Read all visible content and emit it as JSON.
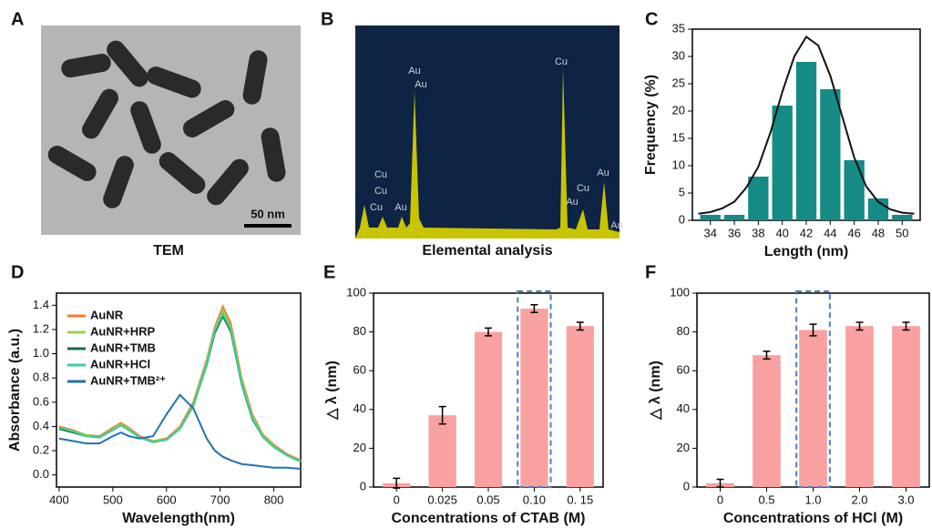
{
  "figure": {
    "tem_label": "A",
    "tem_caption": "TEM",
    "scale_bar": "50 nm",
    "eds_label": "B",
    "eds_caption": "Elemental analysis",
    "eds_peaks": [
      "Cu",
      "Cu",
      "Cu",
      "Au",
      "Au",
      "Au",
      "Cu",
      "Au",
      "Cu",
      "Au",
      "Au"
    ]
  },
  "chart_data": [
    {
      "type": "histogram",
      "panel_label": "C",
      "x_label": "Length (nm)",
      "y_label": "Frequency (%)",
      "color": "#168a85",
      "bins": [
        33,
        35,
        37,
        39,
        41,
        43,
        45,
        47,
        49,
        51
      ],
      "values": [
        1,
        1,
        8,
        21,
        29,
        24,
        11,
        4,
        1
      ],
      "xlim": [
        32.5,
        51.5
      ],
      "xticks": [
        34,
        36,
        38,
        40,
        42,
        44,
        46,
        48,
        50
      ],
      "ylim": [
        0,
        35
      ],
      "yticks": [
        0,
        5,
        10,
        15,
        20,
        25,
        30,
        35
      ],
      "fit_curve": {
        "color": "#111111",
        "x": [
          33,
          34,
          35,
          36,
          37,
          38,
          39,
          40,
          41,
          42,
          43,
          44,
          45,
          46,
          47,
          48,
          49,
          50,
          51
        ],
        "values": [
          1.2,
          1.5,
          2.2,
          3.4,
          6,
          9.8,
          16,
          23.5,
          30,
          33.6,
          32,
          26.5,
          19,
          11.5,
          6.2,
          3.4,
          2,
          1.4,
          1.2
        ]
      }
    },
    {
      "type": "line",
      "panel_label": "D",
      "x_label": "Wavelength(nm)",
      "y_label": "Absorbance (a.u.)",
      "x": [
        400,
        425,
        450,
        475,
        500,
        515,
        530,
        550,
        575,
        600,
        625,
        650,
        675,
        690,
        705,
        720,
        740,
        760,
        780,
        800,
        825,
        850
      ],
      "series": [
        {
          "name": "AuNR",
          "color": "#f07f2e",
          "values": [
            0.4,
            0.37,
            0.33,
            0.32,
            0.39,
            0.43,
            0.39,
            0.32,
            0.28,
            0.3,
            0.4,
            0.6,
            0.95,
            1.22,
            1.39,
            1.25,
            0.8,
            0.5,
            0.33,
            0.25,
            0.17,
            0.12
          ]
        },
        {
          "name": "AuNR+HRP",
          "color": "#9ed04a",
          "values": [
            0.39,
            0.36,
            0.33,
            0.31,
            0.38,
            0.42,
            0.38,
            0.31,
            0.28,
            0.29,
            0.39,
            0.58,
            0.93,
            1.2,
            1.36,
            1.22,
            0.78,
            0.48,
            0.32,
            0.24,
            0.16,
            0.11
          ]
        },
        {
          "name": "AuNR+TMB",
          "color": "#1f6b4a",
          "values": [
            0.38,
            0.35,
            0.32,
            0.31,
            0.37,
            0.41,
            0.37,
            0.31,
            0.27,
            0.29,
            0.38,
            0.57,
            0.91,
            1.17,
            1.31,
            1.18,
            0.75,
            0.46,
            0.31,
            0.23,
            0.16,
            0.11
          ]
        },
        {
          "name": "AuNR+HCl",
          "color": "#3ad19a",
          "values": [
            0.39,
            0.36,
            0.32,
            0.31,
            0.37,
            0.41,
            0.37,
            0.31,
            0.27,
            0.29,
            0.38,
            0.57,
            0.92,
            1.19,
            1.33,
            1.2,
            0.76,
            0.47,
            0.31,
            0.23,
            0.16,
            0.11
          ]
        },
        {
          "name": "AuNR+TMB²⁺",
          "color": "#1f72b8",
          "values": [
            0.3,
            0.28,
            0.26,
            0.26,
            0.32,
            0.35,
            0.32,
            0.3,
            0.32,
            0.5,
            0.66,
            0.55,
            0.3,
            0.2,
            0.15,
            0.12,
            0.09,
            0.08,
            0.07,
            0.06,
            0.06,
            0.05
          ]
        }
      ],
      "xlim": [
        395,
        850
      ],
      "xticks": [
        400,
        500,
        600,
        700,
        800
      ],
      "ylim": [
        -0.1,
        1.5
      ],
      "yticks": [
        {
          "value": 0,
          "label": "0.0"
        },
        0.2,
        0.4,
        0.6,
        0.8,
        {
          "value": 1,
          "label": "1.0"
        },
        1.2,
        1.4
      ],
      "legend": "upper-left"
    },
    {
      "type": "bar",
      "panel_label": "E",
      "x_label": "Concentrations of CTAB (M)",
      "y_label": "△ λ (nm)",
      "color": "#f9a0a0",
      "categories": [
        "0",
        "0.025",
        "0.05",
        "0.10",
        "0. 15"
      ],
      "values": [
        2,
        37,
        80,
        92,
        83
      ],
      "errors": [
        2.5,
        4.5,
        2,
        2,
        2
      ],
      "highlight": 3,
      "ylim": [
        0,
        100
      ],
      "yticks": [
        0,
        20,
        40,
        60,
        80,
        100
      ]
    },
    {
      "type": "bar",
      "panel_label": "F",
      "x_label": "Concentrations of HCl (M)",
      "y_label": "△ λ (nm)",
      "color": "#f9a0a0",
      "categories": [
        "0",
        "0.5",
        "1.0",
        "2.0",
        "3.0"
      ],
      "values": [
        2,
        68,
        81,
        83,
        83
      ],
      "errors": [
        2,
        2,
        3,
        2,
        2
      ],
      "highlight": 2,
      "ylim": [
        0,
        100
      ],
      "yticks": [
        0,
        20,
        40,
        60,
        80,
        100
      ]
    }
  ]
}
